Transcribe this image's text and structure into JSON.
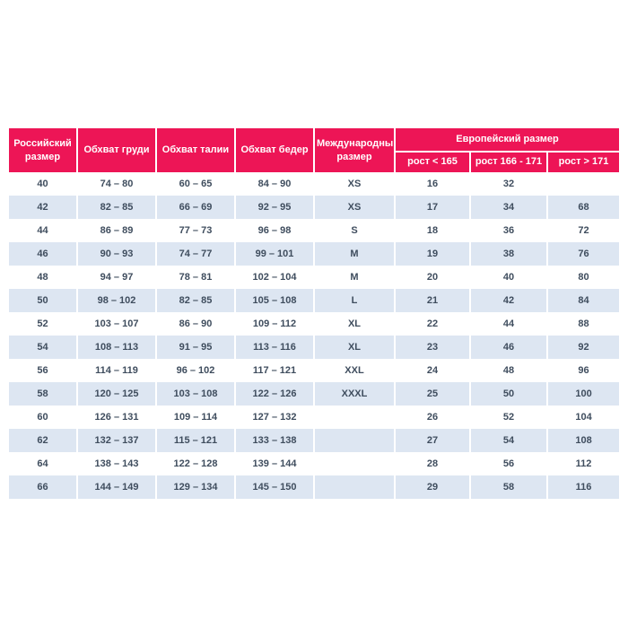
{
  "colors": {
    "header_bg": "#ED1556",
    "header_text": "#FFFFFF",
    "stripe_bg": "#DDE6F2",
    "row_bg": "#FFFFFF",
    "cell_text": "#3F4D5E",
    "header_underline": "#DBDBDB"
  },
  "table": {
    "columns": [
      {
        "label": "Российский размер"
      },
      {
        "label": "Обхват груди"
      },
      {
        "label": "Обхват талии"
      },
      {
        "label": "Обхват бедер"
      },
      {
        "label": "Международный размер"
      }
    ],
    "group_header": {
      "label": "Европейский размер",
      "sub_columns": [
        {
          "label": "рост < 165"
        },
        {
          "label": "рост 166 - 171"
        },
        {
          "label": "рост > 171"
        }
      ]
    },
    "rows": [
      [
        "40",
        "74 – 80",
        "60 – 65",
        "84 – 90",
        "XS",
        "16",
        "32",
        ""
      ],
      [
        "42",
        "82 – 85",
        "66 – 69",
        "92 – 95",
        "XS",
        "17",
        "34",
        "68"
      ],
      [
        "44",
        "86 – 89",
        "77 – 73",
        "96 – 98",
        "S",
        "18",
        "36",
        "72"
      ],
      [
        "46",
        "90 – 93",
        "74 – 77",
        "99 – 101",
        "M",
        "19",
        "38",
        "76"
      ],
      [
        "48",
        "94 – 97",
        "78 – 81",
        "102 – 104",
        "M",
        "20",
        "40",
        "80"
      ],
      [
        "50",
        "98 – 102",
        "82 – 85",
        "105 – 108",
        "L",
        "21",
        "42",
        "84"
      ],
      [
        "52",
        "103 – 107",
        "86 – 90",
        "109 – 112",
        "XL",
        "22",
        "44",
        "88"
      ],
      [
        "54",
        "108 – 113",
        "91 – 95",
        "113 – 116",
        "XL",
        "23",
        "46",
        "92"
      ],
      [
        "56",
        "114 – 119",
        "96 – 102",
        "117 – 121",
        "XXL",
        "24",
        "48",
        "96"
      ],
      [
        "58",
        "120 – 125",
        "103 – 108",
        "122 – 126",
        "XXXL",
        "25",
        "50",
        "100"
      ],
      [
        "60",
        "126 – 131",
        "109 – 114",
        "127 – 132",
        "",
        "26",
        "52",
        "104"
      ],
      [
        "62",
        "132 – 137",
        "115 – 121",
        "133 – 138",
        "",
        "27",
        "54",
        "108"
      ],
      [
        "64",
        "138 – 143",
        "122 – 128",
        "139 – 144",
        "",
        "28",
        "56",
        "112"
      ],
      [
        "66",
        "144 – 149",
        "129 – 134",
        "145 – 150",
        "",
        "29",
        "58",
        "116"
      ]
    ]
  }
}
